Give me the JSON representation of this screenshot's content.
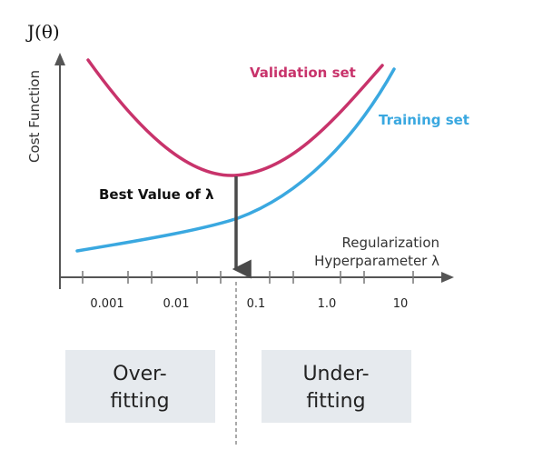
{
  "title": "J(θ)",
  "ylabel": "Cost Function",
  "xlabel_line1": "Regularization",
  "xlabel_line2": "Hyperparameter λ",
  "best_label": "Best Value of λ",
  "ticks": [
    "0.001",
    "0.01",
    "0.1",
    "1.0",
    "10"
  ],
  "validation": {
    "name": "Validation set",
    "color": "#c8336b"
  },
  "training": {
    "name": "Training set",
    "color": "#3aa8e0"
  },
  "boxes": {
    "left": {
      "line1": "Over-",
      "line2": "fitting"
    },
    "right": {
      "line1": "Under-",
      "line2": "fitting"
    },
    "fill": "#e6eaee"
  }
}
